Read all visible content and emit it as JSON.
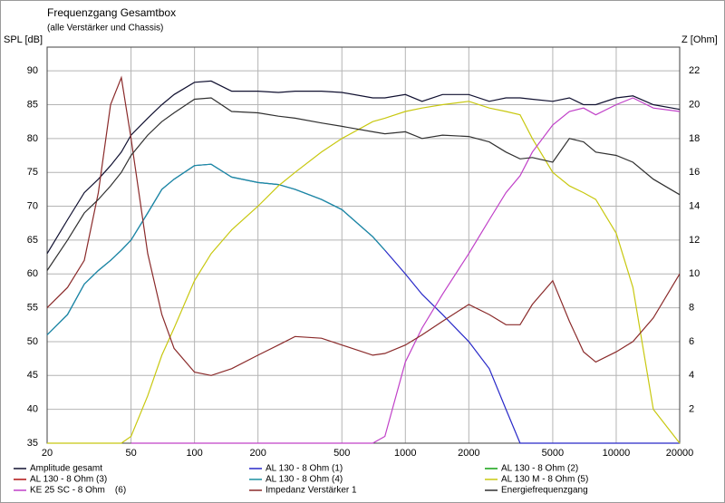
{
  "chart_data": {
    "type": "line",
    "title": "Frequenzgang Gesamtbox",
    "subtitle": "(alle Verstärker und Chassis)",
    "y_label": "SPL [dB]",
    "y2_label": "Z [Ohm]",
    "xlog": true,
    "grid": true,
    "x": [
      20,
      25,
      30,
      35,
      40,
      45,
      50,
      60,
      70,
      80,
      100,
      120,
      150,
      200,
      250,
      300,
      400,
      500,
      700,
      800,
      1000,
      1200,
      1500,
      2000,
      2500,
      3000,
      3500,
      4000,
      5000,
      6000,
      7000,
      8000,
      10000,
      12000,
      15000,
      20000
    ],
    "xlim": [
      20,
      20000
    ],
    "xticks": [
      20,
      50,
      100,
      200,
      500,
      1000,
      2000,
      5000,
      10000,
      20000
    ],
    "ylim": [
      35,
      93.5
    ],
    "yticks": [
      35,
      40,
      45,
      50,
      55,
      60,
      65,
      70,
      75,
      80,
      85,
      90
    ],
    "y2lim": [
      0,
      23.4
    ],
    "y2ticks": [
      2,
      4,
      6,
      8,
      10,
      12,
      14,
      16,
      18,
      20,
      22
    ],
    "series": [
      {
        "name": "Amplitude gesamt",
        "color": "#101030",
        "values": [
          63,
          68,
          72,
          74,
          76,
          78,
          80.5,
          83,
          85,
          86.5,
          88.3,
          88.5,
          87,
          87,
          86.8,
          87,
          87,
          86.8,
          86,
          86,
          86.5,
          85.5,
          86.5,
          86.5,
          85.5,
          86,
          86,
          85.8,
          85.5,
          86,
          85,
          85,
          86,
          86.3,
          85,
          84.3
        ]
      },
      {
        "name": "AL 130 - 8 Ohm (1)",
        "color": "#2828c8",
        "values": [
          51,
          54,
          58.5,
          60.5,
          62,
          63.5,
          65,
          69,
          72.5,
          74,
          76,
          76.2,
          74.3,
          73.5,
          73.2,
          72.5,
          71,
          69.5,
          65.5,
          63.5,
          60,
          57,
          54,
          50,
          46,
          40,
          35,
          35,
          35,
          35,
          35,
          35,
          35,
          35,
          35,
          35
        ]
      },
      {
        "name": "AL 130 - 8 Ohm (2)",
        "color": "#10a010",
        "values": [
          null,
          null,
          null,
          null,
          null,
          null,
          null,
          null,
          null,
          null,
          null,
          null,
          null,
          null,
          null,
          null,
          null,
          null,
          null,
          null,
          null,
          null,
          null,
          null,
          null,
          null,
          null,
          null,
          null,
          null,
          null,
          null,
          null,
          null,
          null,
          null
        ]
      },
      {
        "name": "AL 130 - 8 Ohm (3)",
        "color": "#b01010",
        "values": [
          null,
          null,
          null,
          null,
          null,
          null,
          null,
          null,
          null,
          null,
          null,
          null,
          null,
          null,
          null,
          null,
          null,
          null,
          null,
          null,
          null,
          null,
          null,
          null,
          null,
          null,
          null,
          null,
          null,
          null,
          null,
          null,
          null,
          null,
          null,
          null
        ]
      },
      {
        "name": "AL 130 - 8 Ohm (4)",
        "color": "#1a90a0",
        "values": [
          51,
          54,
          58.5,
          60.5,
          62,
          63.5,
          65,
          69,
          72.5,
          74,
          76,
          76.2,
          74.3,
          73.5,
          73.2,
          72.5,
          71,
          69.5,
          65.5,
          63.5,
          null,
          null,
          null,
          null,
          null,
          null,
          null,
          null,
          null,
          null,
          null,
          null,
          null,
          null,
          null,
          null
        ]
      },
      {
        "name": "AL 130 M - 8 Ohm (5)",
        "color": "#c8c810",
        "values": [
          35,
          35,
          35,
          35,
          35,
          35,
          36,
          42,
          48,
          52,
          59,
          63,
          66.5,
          70,
          73,
          75,
          78,
          80,
          82.5,
          83,
          84,
          84.5,
          85,
          85.5,
          84.5,
          84,
          83.5,
          80,
          75,
          73,
          72,
          71,
          66,
          58,
          40,
          35
        ]
      },
      {
        "name": "KE 25 SC - 8 Ohm    (6)",
        "color": "#c040c8",
        "values": [
          null,
          null,
          null,
          null,
          null,
          null,
          35,
          35,
          35,
          35,
          35,
          35,
          35,
          35,
          35,
          35,
          35,
          35,
          35,
          36,
          47,
          52,
          57,
          63,
          68,
          72,
          74.5,
          78,
          82,
          84,
          84.5,
          83.5,
          85,
          86,
          84.5,
          84
        ]
      },
      {
        "name": "Impedanz Verstärker 1",
        "color": "#8a2a2a",
        "axis": "y2",
        "values": [
          8,
          9.2,
          10.8,
          14.8,
          20,
          21.6,
          18,
          11.2,
          7.6,
          5.6,
          4.2,
          4,
          4.4,
          5.2,
          5.8,
          6.3,
          6.2,
          5.8,
          5.2,
          5.3,
          5.8,
          6.4,
          7.2,
          8.2,
          7.6,
          7,
          7,
          8.2,
          9.6,
          7.2,
          5.4,
          4.8,
          5.4,
          6,
          7.4,
          10
        ]
      },
      {
        "name": "Energiefrequenzgang",
        "color": "#303030",
        "values": [
          60.5,
          65,
          69,
          71,
          73,
          75,
          77.5,
          80.5,
          82.5,
          83.8,
          85.8,
          86,
          84,
          83.8,
          83.3,
          83,
          82.3,
          81.8,
          81,
          80.7,
          81,
          80,
          80.5,
          80.3,
          79.5,
          78,
          77,
          77.2,
          76.5,
          80,
          79.5,
          78,
          77.5,
          76.5,
          74,
          71.7
        ]
      }
    ]
  }
}
